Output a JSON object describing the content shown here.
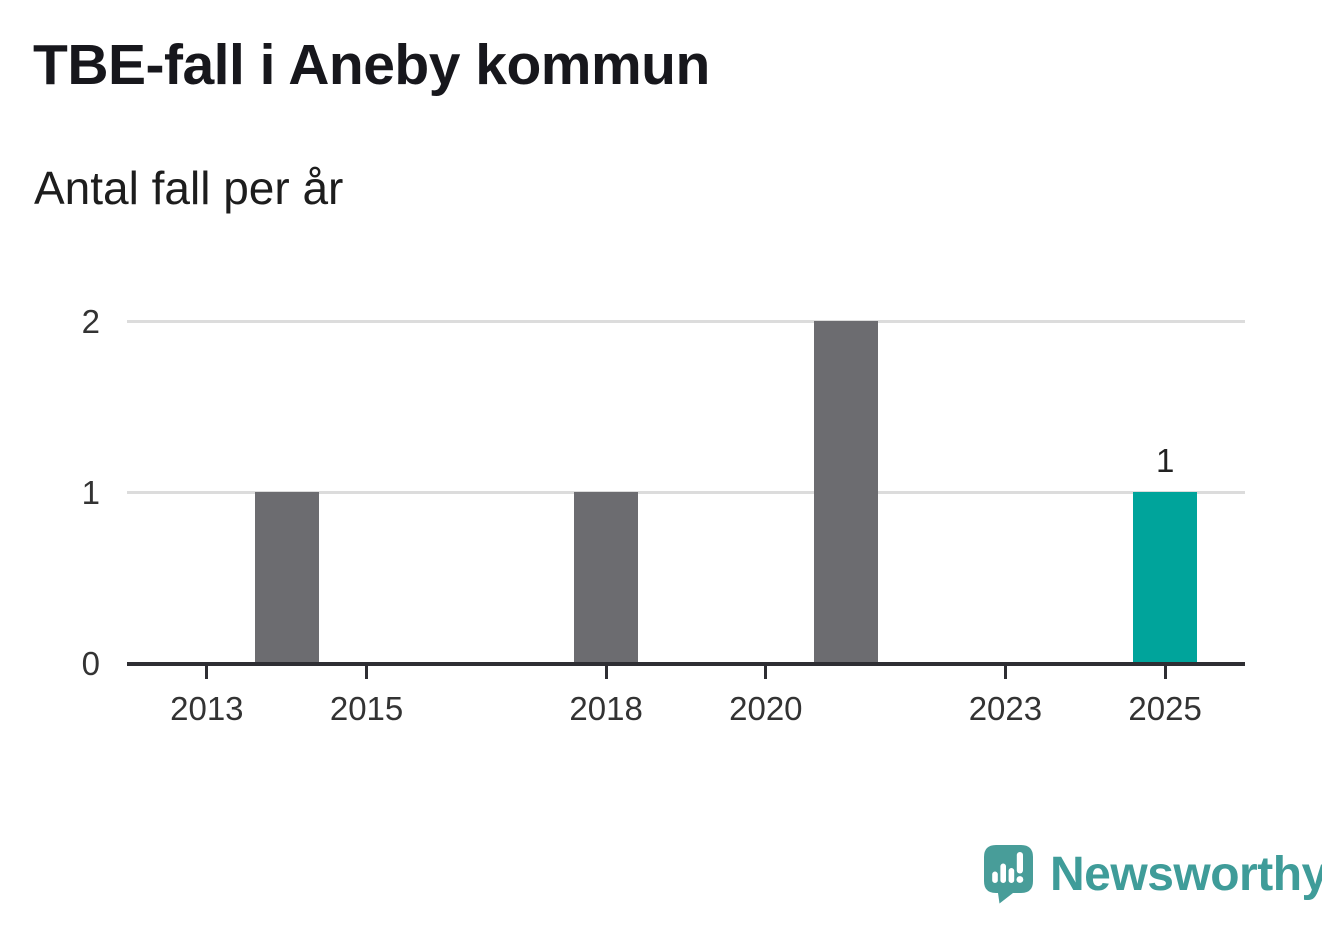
{
  "chart_data": {
    "type": "bar",
    "title": "TBE-fall i Aneby kommun",
    "subtitle": "Antal fall per år",
    "categories": [
      2013,
      2014,
      2015,
      2016,
      2017,
      2018,
      2019,
      2020,
      2021,
      2022,
      2023,
      2024,
      2025
    ],
    "values": [
      0,
      1,
      0,
      0,
      0,
      1,
      0,
      0,
      2,
      0,
      0,
      0,
      1
    ],
    "highlight_category": 2025,
    "value_labels": [
      {
        "category": 2025,
        "text": "1"
      }
    ],
    "xticks": [
      2013,
      2015,
      2018,
      2020,
      2023,
      2025
    ],
    "yticks": [
      0,
      1,
      2
    ],
    "ylim": [
      0,
      2
    ],
    "x_domain": [
      2012,
      2026
    ],
    "grid": "horizontal",
    "legend_position": "none",
    "bar_color": "#6c6c70",
    "highlight_color": "#00a49b"
  },
  "colors": {
    "title": "#17171c",
    "subtitle": "#1d1d1d",
    "axis_label": "#333333",
    "gridline": "#dcdcdc",
    "axis_line": "#2e2e33",
    "logo_text": "#3f9c99",
    "logo_bubble": "#489d99"
  },
  "footer": {
    "brand": "Newsworthy"
  }
}
